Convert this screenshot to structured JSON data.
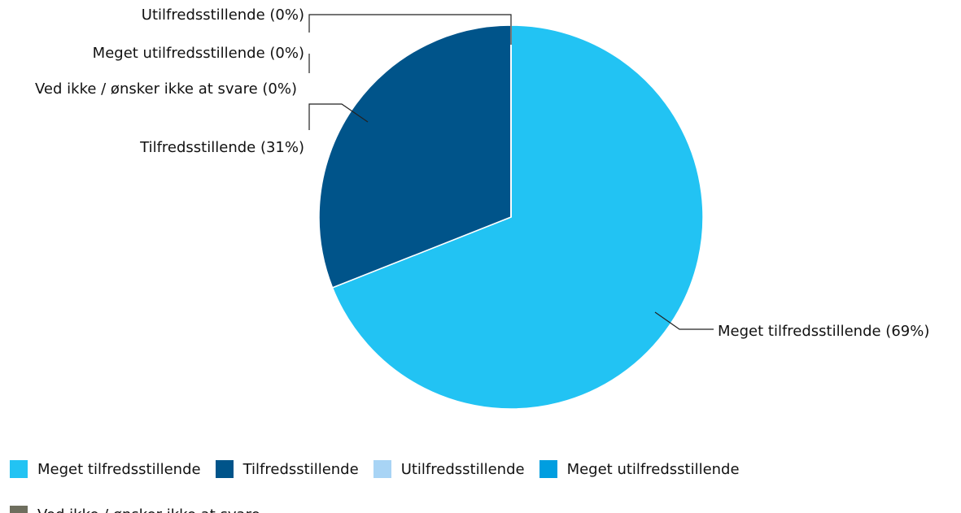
{
  "chart_data": {
    "type": "pie",
    "categories": [
      "Meget tilfredsstillende",
      "Tilfredsstillende",
      "Utilfredsstillende",
      "Meget utilfredsstillende",
      "Ved ikke / ønsker ikke at svare"
    ],
    "values": [
      69,
      31,
      0,
      0,
      0
    ],
    "value_labels": [
      "Meget tilfredsstillende (69%)",
      "Tilfredsstillende (31%)",
      "Utilfredsstillende (0%)",
      "Meget utilfredsstillende (0%)",
      "Ved ikke / ønsker ikke at svare (0%)"
    ],
    "colors": [
      "#22c3f3",
      "#00548a",
      "#a8d4f5",
      "#009ee0",
      "#6e6e5e"
    ]
  }
}
